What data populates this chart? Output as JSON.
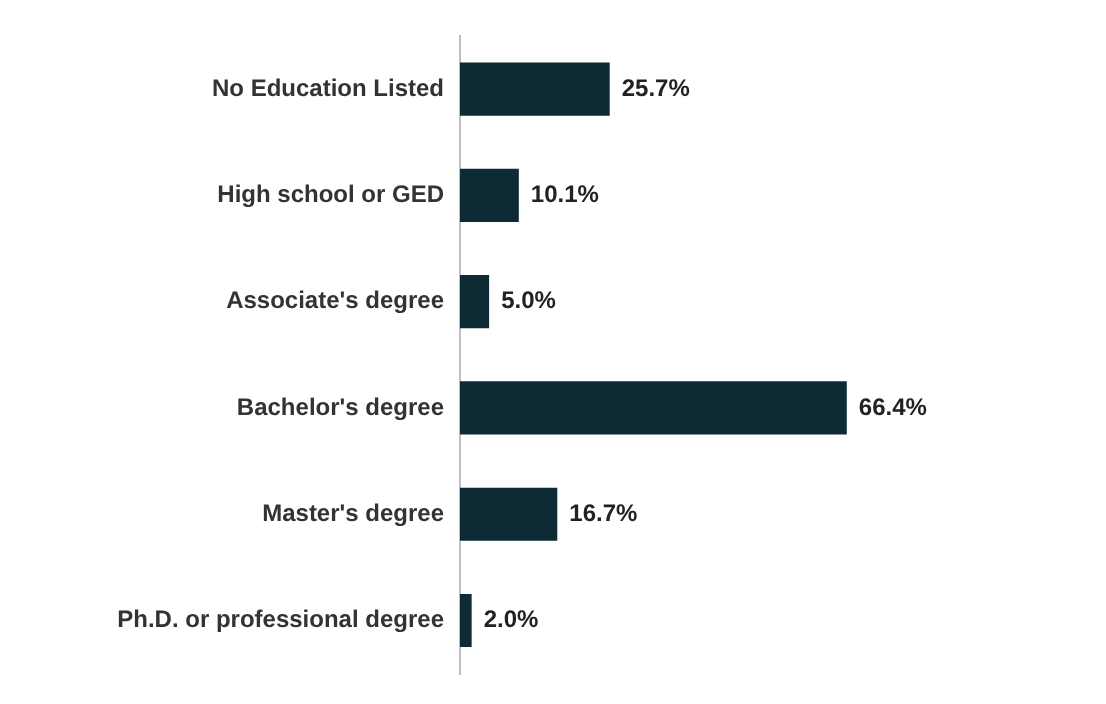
{
  "chart_data": {
    "type": "bar",
    "orientation": "horizontal",
    "categories": [
      "No Education Listed",
      "High school or GED",
      "Associate's degree",
      "Bachelor's degree",
      "Master's degree",
      "Ph.D. or professional degree"
    ],
    "values": [
      25.7,
      10.1,
      5.0,
      66.4,
      16.7,
      2.0
    ],
    "value_labels": [
      "25.7%",
      "10.1%",
      "5.0%",
      "66.4%",
      "16.7%",
      "2.0%"
    ],
    "color": "#0e2a35",
    "tick_labels": "y"
  }
}
